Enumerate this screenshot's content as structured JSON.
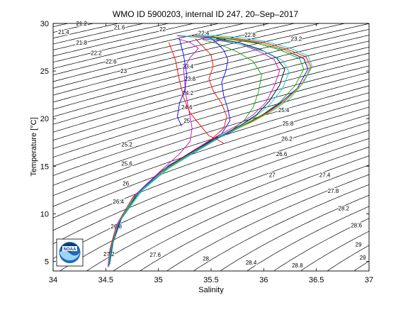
{
  "chart_data": {
    "type": "line",
    "title": "WMO ID 5900203, internal ID 247, 20–Sep–2017",
    "xlabel": "Salinity",
    "ylabel": "Temperature [°C]",
    "xlim": [
      34,
      37
    ],
    "ylim": [
      4,
      30
    ],
    "x_ticks": [
      34,
      34.5,
      35,
      35.5,
      36,
      36.5,
      37
    ],
    "x_tick_labels": [
      "34",
      "34.5",
      "35",
      "35.5",
      "36",
      "36.5",
      "37"
    ],
    "y_ticks": [
      5,
      10,
      15,
      20,
      25,
      30
    ],
    "y_tick_labels": [
      "5",
      "10",
      "15",
      "20",
      "25",
      "30"
    ],
    "grid": false,
    "legend": "none",
    "isopycnal_contours": {
      "sigma_min": 20.8,
      "sigma_max": 30.2,
      "step": 0.2,
      "labels": [
        {
          "text": "21.2",
          "s": 34.27,
          "t": 30.0
        },
        {
          "text": "21.6",
          "s": 34.63,
          "t": 29.6
        },
        {
          "text": "22",
          "s": 35.04,
          "t": 29.4
        },
        {
          "text": "21.4",
          "s": 34.1,
          "t": 29.1
        },
        {
          "text": "21.8",
          "s": 34.27,
          "t": 28.0
        },
        {
          "text": "22.2",
          "s": 34.41,
          "t": 26.9
        },
        {
          "text": "22.6",
          "s": 34.55,
          "t": 26.0
        },
        {
          "text": "23",
          "s": 34.67,
          "t": 25.0
        },
        {
          "text": "22.4",
          "s": 35.43,
          "t": 29.0
        },
        {
          "text": "22.8",
          "s": 35.87,
          "t": 28.8
        },
        {
          "text": "23.2",
          "s": 36.31,
          "t": 28.4
        },
        {
          "text": "23.4",
          "s": 35.28,
          "t": 25.5
        },
        {
          "text": "23.8",
          "s": 35.3,
          "t": 24.2
        },
        {
          "text": "24.2",
          "s": 35.28,
          "t": 22.7
        },
        {
          "text": "24.6",
          "s": 35.27,
          "t": 21.2
        },
        {
          "text": "25",
          "s": 35.27,
          "t": 19.8
        },
        {
          "text": "25.4",
          "s": 36.19,
          "t": 20.9
        },
        {
          "text": "25.8",
          "s": 36.23,
          "t": 19.5
        },
        {
          "text": "26.2",
          "s": 36.22,
          "t": 17.9
        },
        {
          "text": "26.6",
          "s": 36.17,
          "t": 16.3
        },
        {
          "text": "27",
          "s": 36.08,
          "t": 14.1
        },
        {
          "text": "25.2",
          "s": 34.7,
          "t": 17.3
        },
        {
          "text": "25.6",
          "s": 34.7,
          "t": 15.3
        },
        {
          "text": "26",
          "s": 34.69,
          "t": 13.2
        },
        {
          "text": "26.4",
          "s": 34.62,
          "t": 11.3
        },
        {
          "text": "26.8",
          "s": 34.6,
          "t": 8.7
        },
        {
          "text": "27.2",
          "s": 34.53,
          "t": 5.8
        },
        {
          "text": "27.6",
          "s": 34.97,
          "t": 5.7
        },
        {
          "text": "28",
          "s": 35.45,
          "t": 5.3
        },
        {
          "text": "28.4",
          "s": 35.88,
          "t": 4.9
        },
        {
          "text": "28.8",
          "s": 36.32,
          "t": 4.6
        },
        {
          "text": "27.4",
          "s": 36.58,
          "t": 14.1
        },
        {
          "text": "27.8",
          "s": 36.66,
          "t": 12.4
        },
        {
          "text": "28.2",
          "s": 36.76,
          "t": 10.6
        },
        {
          "text": "28.6",
          "s": 36.88,
          "t": 8.8
        },
        {
          "text": "29",
          "s": 36.9,
          "t": 6.8
        },
        {
          "text": "29",
          "s": 36.94,
          "t": 5.4
        }
      ]
    },
    "series": [
      {
        "color": "#0000ff",
        "x": [
          34.53,
          34.55,
          34.62,
          34.8,
          35.05,
          35.35,
          35.58,
          35.8,
          35.98,
          36.15,
          36.32,
          36.42,
          36.38,
          36.2,
          35.98,
          35.72,
          35.5,
          35.3,
          35.18
        ],
        "y": [
          4.5,
          6.5,
          9.0,
          12.0,
          14.5,
          16.5,
          18.0,
          19.2,
          20.3,
          21.6,
          23.2,
          25.2,
          26.3,
          27.2,
          27.9,
          28.3,
          28.5,
          28.6,
          28.7
        ]
      },
      {
        "color": "#ff0000",
        "x": [
          34.53,
          34.56,
          34.63,
          34.82,
          35.08,
          35.38,
          35.62,
          35.85,
          36.03,
          36.2,
          36.36,
          36.45,
          36.4,
          36.22,
          36.0,
          35.75,
          35.52,
          35.32
        ],
        "y": [
          4.6,
          6.8,
          9.3,
          12.3,
          14.8,
          16.8,
          18.3,
          19.5,
          20.6,
          21.9,
          23.6,
          25.4,
          26.5,
          27.3,
          28.0,
          28.4,
          28.6,
          28.7
        ]
      },
      {
        "color": "#00aa00",
        "x": [
          34.52,
          34.54,
          34.61,
          34.78,
          35.03,
          35.3,
          35.52,
          35.7,
          35.82,
          35.9,
          35.95,
          35.98,
          35.9,
          35.75,
          35.58,
          35.42
        ],
        "y": [
          4.5,
          6.2,
          8.8,
          11.8,
          14.3,
          16.2,
          17.6,
          18.8,
          19.9,
          21.2,
          22.8,
          24.6,
          26.0,
          27.0,
          27.8,
          28.3
        ]
      },
      {
        "color": "#00cccc",
        "x": [
          34.54,
          34.57,
          34.65,
          34.85,
          35.12,
          35.42,
          35.66,
          35.9,
          36.08,
          36.24,
          36.38,
          36.46,
          36.42,
          36.25,
          36.02,
          35.8,
          35.56,
          35.34
        ],
        "y": [
          4.7,
          7.0,
          9.5,
          12.5,
          15.0,
          17.0,
          18.5,
          19.7,
          20.8,
          22.0,
          23.8,
          25.5,
          26.6,
          27.4,
          28.1,
          28.5,
          28.7,
          28.8
        ]
      },
      {
        "color": "#cc00cc",
        "x": [
          34.53,
          34.55,
          34.62,
          34.79,
          35.04,
          35.33,
          35.55,
          35.75,
          35.9,
          36.02,
          36.1,
          36.15,
          36.1,
          35.95,
          35.78,
          35.58,
          35.4
        ],
        "y": [
          4.5,
          6.6,
          9.1,
          12.1,
          14.6,
          16.6,
          18.1,
          19.3,
          20.4,
          21.7,
          23.4,
          25.0,
          26.2,
          27.1,
          27.8,
          28.2,
          28.4
        ]
      },
      {
        "color": "#bfbf00",
        "x": [
          34.53,
          34.56,
          34.64,
          34.83,
          35.09,
          35.4,
          35.64,
          35.88,
          36.06,
          36.22,
          36.37,
          36.44,
          36.38,
          36.18,
          35.95,
          35.7,
          35.48
        ],
        "y": [
          4.6,
          6.9,
          9.4,
          12.4,
          14.9,
          16.9,
          18.4,
          19.6,
          20.7,
          22.0,
          23.7,
          25.3,
          26.4,
          27.3,
          28.0,
          28.4,
          28.6
        ]
      },
      {
        "color": "#000000",
        "x": [
          34.52,
          34.55,
          34.62,
          34.8,
          35.05,
          35.34,
          35.58,
          35.78,
          35.93,
          36.05,
          36.15,
          36.2,
          36.12,
          35.96,
          35.76,
          35.55
        ],
        "y": [
          4.5,
          6.6,
          9.1,
          12.1,
          14.6,
          16.6,
          18.1,
          19.3,
          20.4,
          21.8,
          23.5,
          25.2,
          26.4,
          27.3,
          28.0,
          28.4
        ]
      },
      {
        "color": "#0000ff",
        "x": [
          34.53,
          34.57,
          34.65,
          34.84,
          35.1,
          35.4,
          35.6,
          35.68,
          35.66,
          35.62,
          35.6,
          35.64,
          35.66,
          35.62,
          35.55,
          35.48
        ],
        "y": [
          4.6,
          7.0,
          9.6,
          12.6,
          15.1,
          17.0,
          18.4,
          19.8,
          21.0,
          22.4,
          23.8,
          25.0,
          26.2,
          27.2,
          28.0,
          28.6
        ]
      },
      {
        "color": "#ff0000",
        "x": [
          34.52,
          34.54,
          34.6,
          34.76,
          35.0,
          35.28,
          35.5,
          35.62,
          35.65,
          35.6,
          35.52,
          35.48,
          35.52,
          35.5,
          35.42,
          35.35
        ],
        "y": [
          4.4,
          6.3,
          8.8,
          11.8,
          14.3,
          16.3,
          17.8,
          19.0,
          20.2,
          21.6,
          22.9,
          24.2,
          25.5,
          26.7,
          27.6,
          28.4
        ]
      },
      {
        "color": "#00aa00",
        "x": [
          34.53,
          34.56,
          34.63,
          34.81,
          35.06,
          35.36,
          35.6,
          35.82,
          36.0,
          36.16,
          36.3,
          36.38,
          36.34,
          36.16,
          35.94,
          35.7,
          35.46
        ],
        "y": [
          4.6,
          6.7,
          9.2,
          12.2,
          14.7,
          16.7,
          18.2,
          19.4,
          20.5,
          21.8,
          23.5,
          25.2,
          26.3,
          27.2,
          27.9,
          28.3,
          28.6
        ]
      },
      {
        "color": "#cc00cc",
        "x": [
          34.53,
          34.55,
          34.62,
          34.78,
          35.02,
          35.2,
          35.3,
          35.32,
          35.3,
          35.28,
          35.26,
          35.25,
          35.24,
          35.3,
          35.38,
          35.3,
          35.18
        ],
        "y": [
          4.5,
          6.5,
          9.0,
          12.0,
          14.5,
          16.3,
          17.6,
          19.0,
          20.2,
          21.4,
          22.6,
          23.8,
          25.2,
          26.4,
          27.4,
          28.0,
          28.4
        ]
      },
      {
        "color": "#00cccc",
        "x": [
          34.52,
          34.55,
          34.61,
          34.78,
          35.03,
          35.32,
          35.56,
          35.76,
          35.92,
          36.06,
          36.18,
          36.24,
          36.18,
          36.02,
          35.82,
          35.62,
          35.42,
          35.22
        ],
        "y": [
          4.5,
          6.4,
          8.9,
          11.9,
          14.4,
          16.4,
          17.9,
          19.1,
          20.2,
          21.5,
          23.2,
          24.9,
          26.1,
          27.0,
          27.7,
          28.2,
          28.5,
          28.7
        ]
      },
      {
        "color": "#ff0000",
        "x": [
          35.1,
          35.16,
          35.2,
          35.24,
          35.3,
          35.36,
          35.42,
          35.48,
          35.56,
          35.62
        ],
        "y": [
          28.0,
          26.2,
          24.0,
          22.2,
          20.6,
          19.8,
          19.0,
          18.2,
          17.8,
          17.4
        ]
      },
      {
        "color": "#0000ff",
        "x": [
          35.2,
          35.24,
          35.27,
          35.25,
          35.2,
          35.18,
          35.22
        ],
        "y": [
          28.4,
          26.6,
          24.6,
          23.0,
          21.6,
          20.2,
          19.2
        ]
      }
    ]
  }
}
